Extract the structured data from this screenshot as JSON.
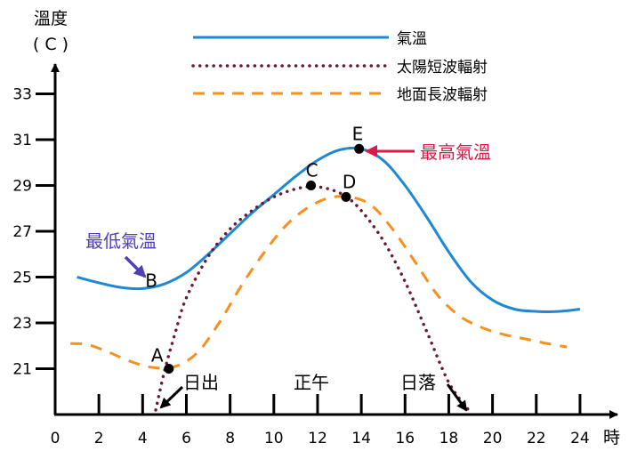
{
  "chart_data": {
    "type": "line",
    "title": "",
    "ylabel": "溫度",
    "ylabel_unit": "( C )",
    "xlabel": "時",
    "xlim": [
      0,
      25
    ],
    "ylim": [
      19,
      34
    ],
    "x_ticks": [
      0,
      2,
      4,
      6,
      8,
      10,
      12,
      14,
      16,
      18,
      20,
      22,
      24
    ],
    "y_ticks": [
      21,
      23,
      25,
      27,
      29,
      31,
      33
    ],
    "grid": false,
    "legend_position": "top-center",
    "series": [
      {
        "name": "氣溫",
        "style": "solid",
        "color": "#1f88d4",
        "x": [
          1,
          2,
          3,
          4,
          5,
          6,
          7,
          8,
          9,
          10,
          11,
          12,
          13,
          14,
          15,
          16,
          17,
          18,
          19,
          20,
          21,
          22,
          23,
          24
        ],
        "values": [
          25.0,
          24.75,
          24.55,
          24.5,
          24.7,
          25.2,
          26.0,
          26.9,
          27.8,
          28.6,
          29.4,
          30.1,
          30.55,
          30.6,
          30.1,
          29.0,
          27.6,
          26.1,
          24.8,
          24.0,
          23.6,
          23.5,
          23.5,
          23.6
        ]
      },
      {
        "name": "太陽短波輻射",
        "style": "dotted",
        "color": "#6b1838",
        "x": [
          4.6,
          5,
          5.5,
          6,
          7,
          8,
          9,
          10,
          11,
          11.75,
          12.5,
          13.25,
          14,
          15,
          16,
          17,
          18,
          18.9
        ],
        "values": [
          19.2,
          20.9,
          22.6,
          24.1,
          25.9,
          27.1,
          27.9,
          28.5,
          28.85,
          28.95,
          28.85,
          28.55,
          27.9,
          26.6,
          24.8,
          22.6,
          20.4,
          19.2
        ]
      },
      {
        "name": "地面長波輻射",
        "style": "dashed",
        "color": "#f7901e",
        "x": [
          0.7,
          1.5,
          2.5,
          3.5,
          4.5,
          5.5,
          6.5,
          7.5,
          8.5,
          9.5,
          10.5,
          11.5,
          12.5,
          13.5,
          14.5,
          15.5,
          16.5,
          17.5,
          18.5,
          19.5,
          20.5,
          21.5,
          22.5,
          23.4
        ],
        "values": [
          22.1,
          22.05,
          21.7,
          21.3,
          21.05,
          21.1,
          21.7,
          23.0,
          24.6,
          26.0,
          27.2,
          28.0,
          28.45,
          28.5,
          28.1,
          27.0,
          25.6,
          24.2,
          23.3,
          22.8,
          22.5,
          22.3,
          22.1,
          21.95
        ]
      }
    ],
    "points": [
      {
        "label": "A",
        "x": 5.2,
        "y": 21.0
      },
      {
        "label": "B",
        "x": 4.2,
        "y": 24.5
      },
      {
        "label": "C",
        "x": 11.7,
        "y": 29.0
      },
      {
        "label": "D",
        "x": 13.3,
        "y": 28.5
      },
      {
        "label": "E",
        "x": 13.9,
        "y": 30.6
      }
    ],
    "annotations": [
      {
        "text": "最高氣溫",
        "color": "#d81b48",
        "target": "E"
      },
      {
        "text": "最低氣溫",
        "color": "#5040b8",
        "target": "B"
      },
      {
        "text": "日出",
        "color": "#000000",
        "target_x": 4.7
      },
      {
        "text": "正午",
        "color": "#000000",
        "target_x": 12
      },
      {
        "text": "日落",
        "color": "#000000",
        "target_x": 18.8
      }
    ]
  }
}
